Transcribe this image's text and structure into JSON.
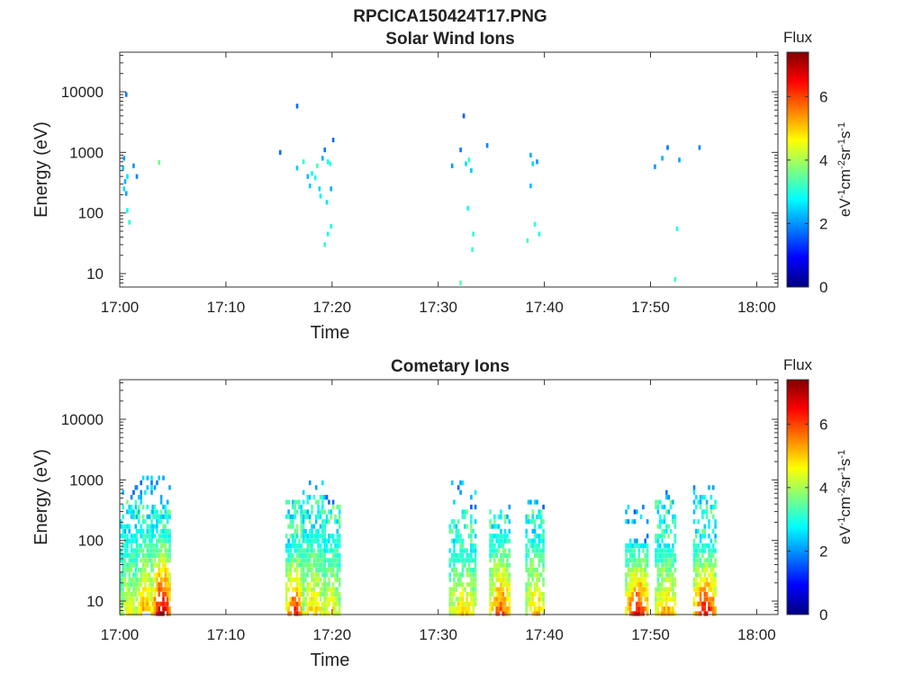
{
  "figure": {
    "filename_title": "RPCICA150424T17.PNG"
  },
  "colorbar_palette": [
    "#00007f",
    "#0000ff",
    "#007fff",
    "#00ffff",
    "#7fff7f",
    "#ffff00",
    "#ff7f00",
    "#ff0000",
    "#7f0000"
  ],
  "chart_data": [
    {
      "type": "heatmap",
      "title": "Solar Wind Ions",
      "xlabel": "Time",
      "ylabel": "Energy (eV)",
      "x_ticks": [
        "17:00",
        "17:10",
        "17:20",
        "17:30",
        "17:40",
        "17:50",
        "18:00"
      ],
      "x_range": [
        "17:00",
        "18:02"
      ],
      "y_scale": "log",
      "y_ticks": [
        "10",
        "100",
        "1000",
        "10000"
      ],
      "y_range": [
        6,
        45000
      ],
      "colorbar": {
        "title": "Flux",
        "label": "eV-1cm-2sr-1s-1",
        "label_parts": [
          [
            "eV",
            false
          ],
          [
            "-1",
            true
          ],
          [
            "cm",
            false
          ],
          [
            "-2",
            true
          ],
          [
            "sr",
            false
          ],
          [
            "-1",
            true
          ],
          [
            "s",
            false
          ],
          [
            "-1",
            true
          ]
        ],
        "ticks": [
          "0",
          "2",
          "4",
          "6"
        ],
        "range": [
          0,
          7.4
        ]
      },
      "points": [
        [
          0.5,
          9000,
          1.8
        ],
        [
          0.3,
          800,
          2.1
        ],
        [
          0.2,
          550,
          2.4
        ],
        [
          0.6,
          400,
          2.6
        ],
        [
          0.4,
          330,
          2.2
        ],
        [
          0.3,
          250,
          2.5
        ],
        [
          0.5,
          210,
          2.1
        ],
        [
          0.6,
          110,
          2.8
        ],
        [
          0.8,
          70,
          3.0
        ],
        [
          1.5,
          400,
          1.9
        ],
        [
          1.2,
          600,
          2.0
        ],
        [
          3.6,
          680,
          3.6
        ],
        [
          15.0,
          1000,
          1.7
        ],
        [
          16.6,
          5800,
          1.7
        ],
        [
          16.6,
          550,
          2.4
        ],
        [
          17.2,
          700,
          3.1
        ],
        [
          17.6,
          400,
          2.3
        ],
        [
          17.8,
          280,
          2.4
        ],
        [
          18.0,
          450,
          2.8
        ],
        [
          18.3,
          380,
          2.9
        ],
        [
          18.5,
          600,
          3.3
        ],
        [
          18.7,
          250,
          2.5
        ],
        [
          18.8,
          190,
          2.7
        ],
        [
          19.0,
          800,
          2.2
        ],
        [
          19.2,
          1100,
          1.8
        ],
        [
          19.5,
          700,
          2.8
        ],
        [
          19.7,
          650,
          3.1
        ],
        [
          20.0,
          1600,
          1.7
        ],
        [
          19.4,
          150,
          2.6
        ],
        [
          19.8,
          250,
          2.2
        ],
        [
          19.2,
          30,
          3.1
        ],
        [
          19.5,
          45,
          2.9
        ],
        [
          19.8,
          60,
          3.0
        ],
        [
          32.0,
          7,
          3.4
        ],
        [
          31.2,
          600,
          2.1
        ],
        [
          32.0,
          1100,
          1.8
        ],
        [
          32.3,
          4000,
          1.6
        ],
        [
          32.5,
          650,
          2.5
        ],
        [
          32.8,
          750,
          3.1
        ],
        [
          33.0,
          500,
          2.4
        ],
        [
          32.7,
          120,
          2.8
        ],
        [
          33.1,
          25,
          3.2
        ],
        [
          33.2,
          45,
          3.1
        ],
        [
          34.5,
          1300,
          1.9
        ],
        [
          38.3,
          35,
          3.3
        ],
        [
          38.6,
          900,
          2.2
        ],
        [
          38.8,
          650,
          2.5
        ],
        [
          39.2,
          700,
          2.0
        ],
        [
          38.6,
          280,
          2.3
        ],
        [
          39.0,
          65,
          3.1
        ],
        [
          39.4,
          45,
          3.0
        ],
        [
          50.3,
          580,
          2.0
        ],
        [
          51.0,
          800,
          2.2
        ],
        [
          51.5,
          1200,
          1.8
        ],
        [
          52.2,
          8,
          3.2
        ],
        [
          52.4,
          55,
          3.0
        ],
        [
          52.6,
          750,
          2.1
        ],
        [
          54.5,
          1200,
          1.9
        ]
      ]
    },
    {
      "type": "heatmap",
      "title": "Cometary Ions",
      "xlabel": "Time",
      "ylabel": "Energy (eV)",
      "x_ticks": [
        "17:00",
        "17:10",
        "17:20",
        "17:30",
        "17:40",
        "17:50",
        "18:00"
      ],
      "x_range": [
        "17:00",
        "18:02"
      ],
      "y_scale": "log",
      "y_ticks": [
        "10",
        "100",
        "1000",
        "10000"
      ],
      "y_range": [
        6,
        45000
      ],
      "colorbar": {
        "title": "Flux",
        "label": "eV-1cm-2sr-1s-1",
        "label_parts": [
          [
            "eV",
            false
          ],
          [
            "-1",
            true
          ],
          [
            "cm",
            false
          ],
          [
            "-2",
            true
          ],
          [
            "sr",
            false
          ],
          [
            "-1",
            true
          ],
          [
            "s",
            false
          ],
          [
            "-1",
            true
          ]
        ],
        "ticks": [
          "0",
          "2",
          "4",
          "6"
        ],
        "range": [
          0,
          7.4
        ]
      },
      "bursts": [
        {
          "start": 0.0,
          "end": 1.5,
          "low_peak": 4.6,
          "low_top": 120,
          "mid_top": 450,
          "sparse_top": 1000
        },
        {
          "start": 1.5,
          "end": 3.0,
          "low_peak": 5.4,
          "low_top": 150,
          "mid_top": 400,
          "sparse_top": 1100
        },
        {
          "start": 3.0,
          "end": 4.8,
          "low_peak": 7.0,
          "low_top": 150,
          "mid_top": 400,
          "sparse_top": 1100
        },
        {
          "start": 15.6,
          "end": 17.2,
          "low_peak": 6.4,
          "low_top": 90,
          "mid_top": 450,
          "sparse_top": 500
        },
        {
          "start": 17.2,
          "end": 19.2,
          "low_peak": 5.0,
          "low_top": 150,
          "mid_top": 550,
          "sparse_top": 900
        },
        {
          "start": 19.2,
          "end": 20.6,
          "low_peak": 4.8,
          "low_top": 120,
          "mid_top": 400,
          "sparse_top": 600
        },
        {
          "start": 31.0,
          "end": 33.6,
          "low_peak": 5.0,
          "low_top": 80,
          "mid_top": 350,
          "sparse_top": 900
        },
        {
          "start": 34.8,
          "end": 36.8,
          "low_peak": 6.0,
          "low_top": 120,
          "mid_top": 300,
          "sparse_top": 500
        },
        {
          "start": 38.2,
          "end": 40.0,
          "low_peak": 5.2,
          "low_top": 110,
          "mid_top": 350,
          "sparse_top": 900
        },
        {
          "start": 47.6,
          "end": 49.8,
          "low_peak": 6.6,
          "low_top": 85,
          "mid_top": 90,
          "sparse_top": 600
        },
        {
          "start": 50.4,
          "end": 52.4,
          "low_peak": 5.4,
          "low_top": 85,
          "mid_top": 450,
          "sparse_top": 650
        },
        {
          "start": 54.0,
          "end": 56.2,
          "low_peak": 6.6,
          "low_top": 90,
          "mid_top": 550,
          "sparse_top": 800
        }
      ]
    }
  ]
}
